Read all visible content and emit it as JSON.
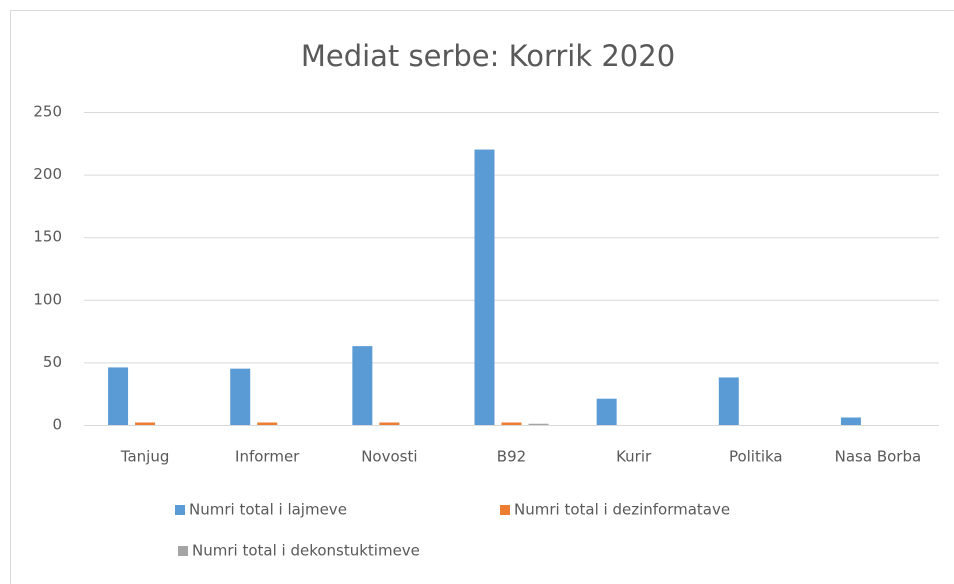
{
  "chart_data": {
    "type": "bar",
    "title": "Mediat serbe: Korrik 2020",
    "categories": [
      "Tanjug",
      "Informer",
      "Novosti",
      "B92",
      "Kurir",
      "Politika",
      "Nasa Borba"
    ],
    "series": [
      {
        "name": "Numri total i lajmeve",
        "color": "#5b9bd5",
        "values": [
          46,
          45,
          63,
          220,
          21,
          38,
          6
        ]
      },
      {
        "name": "Numri total i dezinformatave",
        "color": "#ed7d31",
        "values": [
          2,
          2,
          2,
          2,
          0,
          0,
          0
        ]
      },
      {
        "name": "Numri total i dekonstuktimeve",
        "color": "#a5a5a5",
        "values": [
          0,
          0,
          0,
          1,
          0,
          0,
          0
        ]
      }
    ],
    "ylim": [
      0,
      250
    ],
    "yticks": [
      0,
      50,
      100,
      150,
      200,
      250
    ],
    "grid": true,
    "legend": "bottom"
  }
}
